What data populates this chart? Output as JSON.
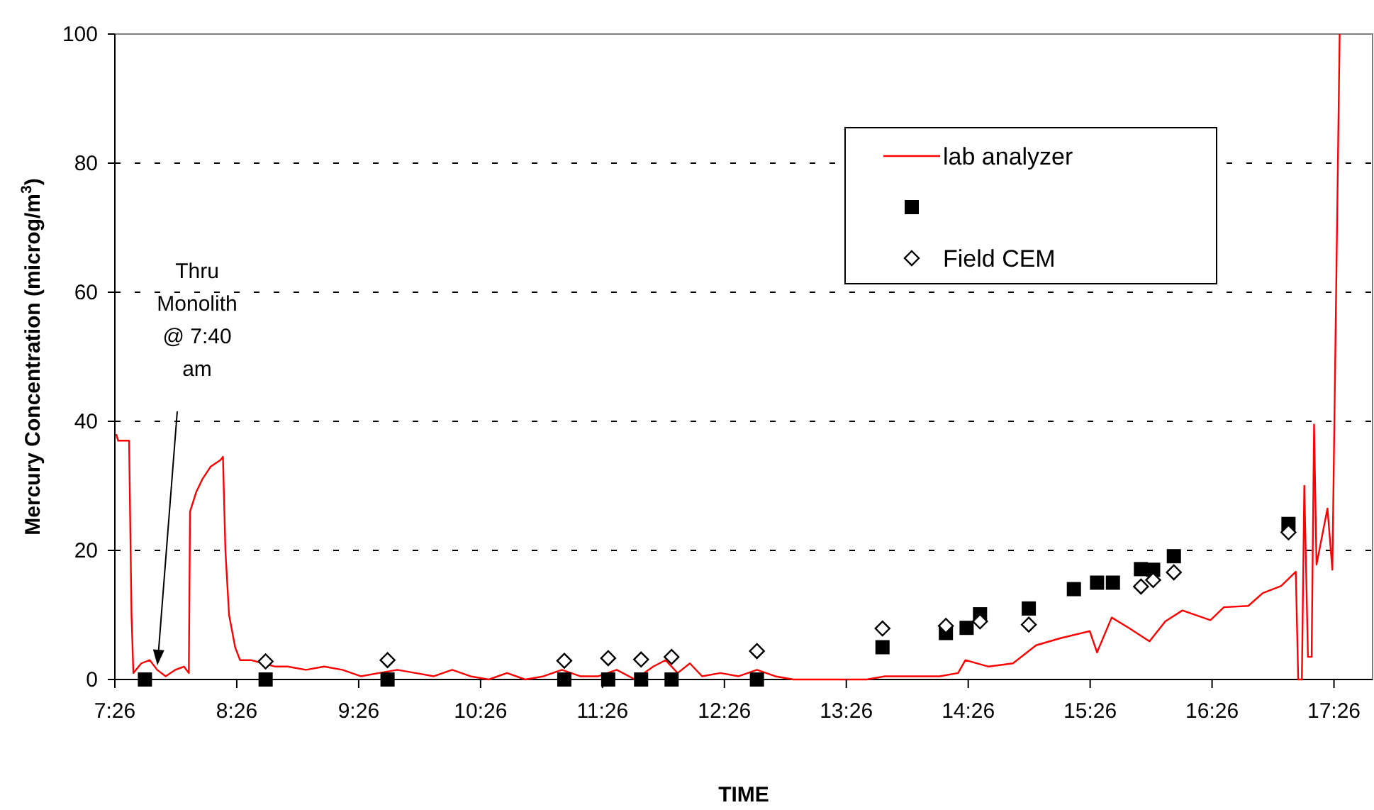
{
  "chart_data": {
    "type": "line",
    "xlabel": "TIME",
    "ylabel": "Mercury Concentration (microg/m$^{3}$)",
    "xlim": [
      7.4333,
      17.75
    ],
    "xticks": [
      {
        "value": 7.4333,
        "label": "7:26"
      },
      {
        "value": 8.4333,
        "label": "8:26"
      },
      {
        "value": 9.4333,
        "label": "9:26"
      },
      {
        "value": 10.4333,
        "label": "10:26"
      },
      {
        "value": 11.4333,
        "label": "11:26"
      },
      {
        "value": 12.4333,
        "label": "12:26"
      },
      {
        "value": 13.4333,
        "label": "13:26"
      },
      {
        "value": 14.4333,
        "label": "14:26"
      },
      {
        "value": 15.4333,
        "label": "15:26"
      },
      {
        "value": 16.4333,
        "label": "16:26"
      },
      {
        "value": 17.4333,
        "label": "17:26"
      }
    ],
    "ylim": [
      0,
      100
    ],
    "yticks": [
      0,
      20,
      40,
      60,
      80,
      100
    ],
    "grid": "y",
    "legend": "top right",
    "annotations": [
      "Thru Monolith @ 7:40 am"
    ],
    "series": [
      {
        "name": "lab analyzer",
        "color": "#ff0000",
        "marker": "none",
        "line_style": "solid",
        "x": [
          7.445,
          7.46,
          7.55,
          7.57,
          7.585,
          7.65,
          7.72,
          7.78,
          7.85,
          7.93,
          8.0,
          8.04,
          8.05,
          8.1,
          8.15,
          8.22,
          8.3,
          8.32,
          8.34,
          8.37,
          8.42,
          8.46,
          8.55,
          8.65,
          8.75,
          8.85,
          9.0,
          9.15,
          9.3,
          9.45,
          9.6,
          9.75,
          9.9,
          10.05,
          10.2,
          10.35,
          10.5,
          10.65,
          10.8,
          10.95,
          11.1,
          11.25,
          11.4,
          11.55,
          11.7,
          11.85,
          11.95,
          12.05,
          12.15,
          12.25,
          12.4,
          12.55,
          12.7,
          12.85,
          13.0,
          13.15,
          13.3,
          13.45,
          13.6,
          13.75,
          13.9,
          14.05,
          14.2,
          14.35,
          14.41,
          14.6,
          14.8,
          14.99,
          15.19,
          15.43,
          15.49,
          15.61,
          15.75,
          15.92,
          16.05,
          16.19,
          16.42,
          16.53,
          16.73,
          16.85,
          17.0,
          17.12,
          17.14,
          17.17,
          17.19,
          17.22,
          17.25,
          17.27,
          17.29,
          17.38,
          17.42,
          17.48
        ],
        "values": [
          38,
          37,
          37,
          10,
          1,
          2.5,
          3,
          1.5,
          0.5,
          1.5,
          2,
          1,
          26,
          29,
          31,
          33,
          34,
          34.5,
          20,
          10,
          5,
          3,
          3,
          2.5,
          2,
          2,
          1.5,
          2,
          1.5,
          0.5,
          1,
          1.5,
          1,
          0.5,
          1.5,
          0.5,
          0,
          1,
          0,
          0.5,
          1.5,
          0.5,
          0.5,
          1.5,
          0,
          2,
          3,
          1,
          2.5,
          0.5,
          1,
          0.5,
          1.5,
          0.5,
          0,
          0,
          0,
          0,
          0,
          0.5,
          0.5,
          0.5,
          0.5,
          1,
          3,
          2,
          2.5,
          5.3,
          6.4,
          7.5,
          4.2,
          9.6,
          8,
          5.9,
          9,
          10.7,
          9.2,
          11.2,
          11.4,
          13.4,
          14.5,
          16.7,
          0,
          0,
          30,
          3.5,
          3.5,
          39.5,
          17.8,
          26.5,
          17,
          100
        ]
      },
      {
        "type": "scatter",
        "color": "#000000",
        "marker": "square",
        "x": [
          7.68,
          8.67,
          9.67,
          11.12,
          11.48,
          11.75,
          12.0,
          12.7,
          13.73,
          14.25,
          14.42,
          14.53,
          14.93,
          15.3,
          15.49,
          15.62,
          15.85,
          15.95,
          16.12,
          17.06
        ],
        "values": [
          0,
          0,
          0,
          0,
          0,
          0,
          0,
          0,
          5,
          7.2,
          8,
          10.1,
          11,
          14,
          15,
          15,
          17.1,
          17,
          19.1,
          24.1
        ]
      },
      {
        "name": "Field CEM",
        "type": "scatter",
        "color": "#000000",
        "marker": "diamond",
        "x": [
          8.67,
          9.67,
          11.12,
          11.48,
          11.75,
          12.0,
          12.7,
          13.73,
          14.25,
          14.53,
          14.93,
          15.85,
          15.95,
          16.12,
          17.06
        ],
        "values": [
          2.8,
          3,
          2.9,
          3.3,
          3.1,
          3.5,
          4.4,
          7.9,
          8.3,
          9,
          8.5,
          14.4,
          15.4,
          16.6,
          22.8
        ]
      }
    ]
  }
}
